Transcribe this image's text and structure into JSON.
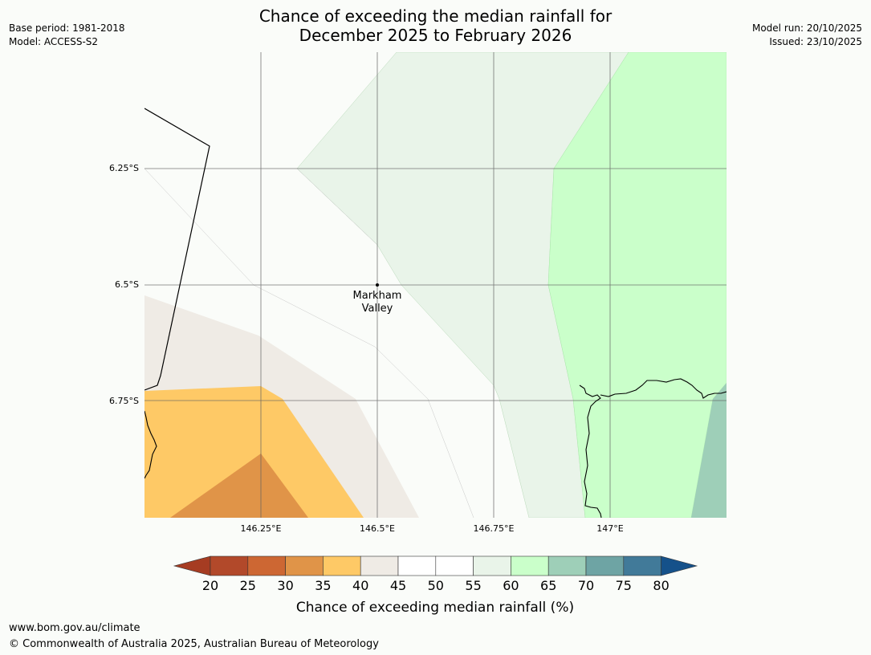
{
  "header": {
    "title_line1": "Chance of exceeding the median rainfall for",
    "title_line2": "December 2025 to February 2026",
    "base_period": "Base period: 1981-2018",
    "model": "Model: ACCESS-S2",
    "model_run": "Model run: 20/10/2025",
    "issued": "Issued: 23/10/2025"
  },
  "map": {
    "place_label_line1": "Markham",
    "place_label_line2": "Valley",
    "lat_labels": [
      "6.25°S",
      "6.5°S",
      "6.75°S"
    ],
    "lon_labels": [
      "146.25°E",
      "146.5°E",
      "146.75°E",
      "147°E"
    ],
    "extent": {
      "lon_min": 146.0,
      "lon_max": 147.25,
      "lat_min": -7.0,
      "lat_max": -6.0
    }
  },
  "legend": {
    "title": "Chance of exceeding median rainfall (%)",
    "ticks": [
      "20",
      "25",
      "30",
      "35",
      "40",
      "45",
      "50",
      "55",
      "60",
      "65",
      "70",
      "75",
      "80"
    ],
    "colors": {
      "below_20": "#a63c22",
      "c20_25": "#b2492a",
      "c25_30": "#cd6733",
      "c30_35": "#e09448",
      "c35_40": "#fec966",
      "c40_45": "#efebe5",
      "c45_50": "#ffffff",
      "c50_55": "#ffffff",
      "c55_60": "#e9f4e9",
      "c60_65": "#caffca",
      "c65_70": "#9ecfb8",
      "c70_75": "#6ea4a4",
      "c75_80": "#417a99",
      "above_80": "#15518a"
    }
  },
  "footer": {
    "url": "www.bom.gov.au/climate",
    "copyright": "© Commonwealth of Australia 2025, Australian Bureau of Meteorology"
  }
}
